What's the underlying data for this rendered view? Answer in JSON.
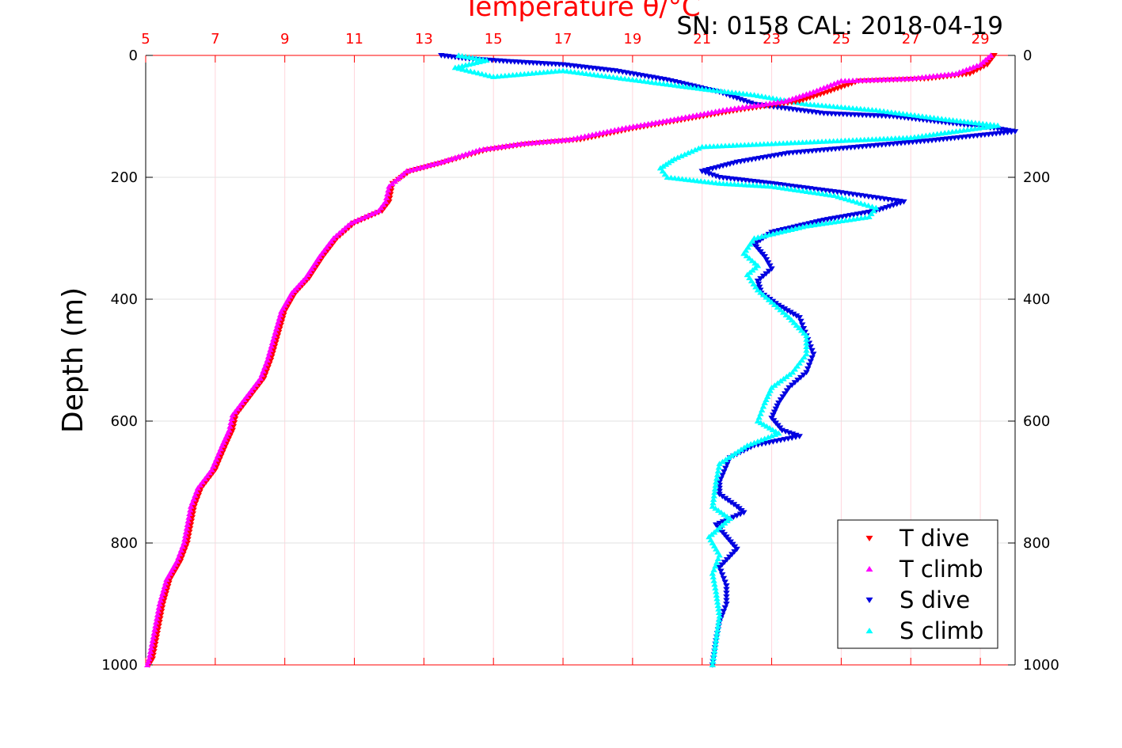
{
  "chart_data": {
    "type": "scatter",
    "title": "Temperature θ/°C",
    "subtitle": "SN: 0158  CAL: 2018-04-19",
    "xlabel_top": "Temperature θ/°C",
    "ylabel": "Depth (m)",
    "xlim": [
      5,
      30
    ],
    "ylim": [
      0,
      1000
    ],
    "y_inverted": true,
    "grid": true,
    "legend_position": "bottom-right",
    "x_ticks": [
      "5",
      "7",
      "9",
      "11",
      "13",
      "15",
      "17",
      "19",
      "21",
      "23",
      "25",
      "27",
      "29"
    ],
    "y_ticks": [
      "0",
      "200",
      "400",
      "600",
      "800",
      "1000"
    ],
    "colors": {
      "temperature_axis": "#ff0000",
      "grid": "#e6e6e6",
      "t_dive": "#ff0000",
      "t_climb": "#ff00ff",
      "s_dive": "#0000e0",
      "s_climb": "#00ffff"
    },
    "series": [
      {
        "name": "T dive",
        "marker": "triangle-down",
        "x": [
          29.4,
          29.2,
          28.7,
          27.5,
          25.5,
          24.6,
          23.8,
          22.0,
          20.5,
          19.0,
          17.5,
          16.0,
          14.8,
          13.6,
          12.6,
          12.1,
          12.0,
          11.8,
          11.0,
          10.5,
          10.1,
          9.7,
          9.3,
          9.0,
          8.8,
          8.6,
          8.4,
          8.0,
          7.6,
          7.5,
          7.3,
          7.0,
          6.6,
          6.4,
          6.3,
          6.2,
          6.0,
          5.7,
          5.5,
          5.4,
          5.3,
          5.2,
          5.1
        ],
        "y": [
          0,
          15,
          30,
          38,
          42,
          60,
          75,
          90,
          105,
          120,
          138,
          145,
          155,
          175,
          190,
          210,
          240,
          255,
          275,
          300,
          330,
          365,
          390,
          420,
          460,
          500,
          530,
          560,
          590,
          615,
          640,
          680,
          710,
          740,
          770,
          800,
          830,
          860,
          900,
          930,
          960,
          990,
          1000
        ]
      },
      {
        "name": "T climb",
        "marker": "triangle-up",
        "x": [
          29.3,
          29.0,
          28.3,
          27.0,
          25.0,
          24.2,
          23.4,
          21.6,
          20.2,
          18.7,
          17.2,
          15.8,
          14.6,
          13.5,
          12.5,
          12.0,
          11.9,
          11.7,
          10.9,
          10.4,
          10.0,
          9.6,
          9.2,
          8.9,
          8.7,
          8.5,
          8.3,
          7.9,
          7.5,
          7.4,
          7.2,
          6.9,
          6.5,
          6.3,
          6.2,
          6.1,
          5.9,
          5.6,
          5.4,
          5.3,
          5.2,
          5.1,
          5.05
        ],
        "y": [
          0,
          15,
          30,
          38,
          42,
          60,
          75,
          90,
          105,
          120,
          138,
          145,
          155,
          175,
          190,
          215,
          240,
          255,
          275,
          300,
          330,
          365,
          390,
          420,
          460,
          500,
          530,
          560,
          590,
          615,
          640,
          680,
          710,
          740,
          770,
          800,
          830,
          860,
          900,
          930,
          960,
          990,
          1000
        ]
      },
      {
        "name": "S dive",
        "marker": "triangle-down",
        "x": [
          13.5,
          14.2,
          15.5,
          17.0,
          18.5,
          20.0,
          21.5,
          22.5,
          24.5,
          26.5,
          28.0,
          29.5,
          30.0,
          27.5,
          25.5,
          23.5,
          22.0,
          21.0,
          21.5,
          23.0,
          25.0,
          26.8,
          26.0,
          24.5,
          23.0,
          22.5,
          22.8,
          23.0,
          22.6,
          22.7,
          23.2,
          23.8,
          24.0,
          24.2,
          24.0,
          23.5,
          23.2,
          23.0,
          23.3,
          23.8,
          22.5,
          21.8,
          21.5,
          21.5,
          22.0,
          22.2,
          21.4,
          21.7,
          22.0,
          21.5,
          21.7,
          21.7,
          21.5,
          21.4,
          21.3
        ],
        "y": [
          0,
          5,
          10,
          15,
          25,
          40,
          60,
          80,
          95,
          100,
          110,
          120,
          125,
          140,
          150,
          160,
          175,
          190,
          200,
          210,
          225,
          240,
          255,
          270,
          290,
          310,
          330,
          350,
          370,
          390,
          410,
          430,
          460,
          490,
          520,
          545,
          570,
          595,
          615,
          625,
          640,
          660,
          700,
          720,
          740,
          750,
          770,
          790,
          810,
          840,
          870,
          900,
          930,
          960,
          1000
        ]
      },
      {
        "name": "S climb",
        "marker": "triangle-up",
        "x": [
          14.0,
          14.8,
          13.9,
          15.0,
          17.0,
          19.0,
          21.0,
          22.5,
          24.0,
          26.0,
          28.0,
          29.5,
          27.0,
          25.0,
          23.0,
          21.0,
          20.2,
          19.8,
          20.0,
          21.5,
          23.0,
          24.8,
          26.0,
          25.8,
          24.0,
          22.5,
          22.2,
          22.6,
          22.3,
          22.6,
          23.0,
          23.5,
          24.0,
          24.0,
          23.6,
          23.0,
          22.8,
          22.6,
          23.2,
          22.3,
          21.5,
          21.4,
          21.3,
          21.8,
          21.2,
          21.5,
          21.3,
          21.4,
          21.5,
          21.4,
          21.3
        ],
        "y": [
          0,
          8,
          20,
          35,
          25,
          40,
          55,
          65,
          80,
          90,
          105,
          115,
          135,
          140,
          145,
          150,
          170,
          185,
          200,
          210,
          215,
          230,
          250,
          265,
          280,
          300,
          325,
          345,
          360,
          385,
          405,
          430,
          460,
          490,
          520,
          545,
          570,
          600,
          620,
          640,
          670,
          700,
          740,
          760,
          790,
          820,
          850,
          880,
          920,
          960,
          1000
        ]
      }
    ]
  }
}
